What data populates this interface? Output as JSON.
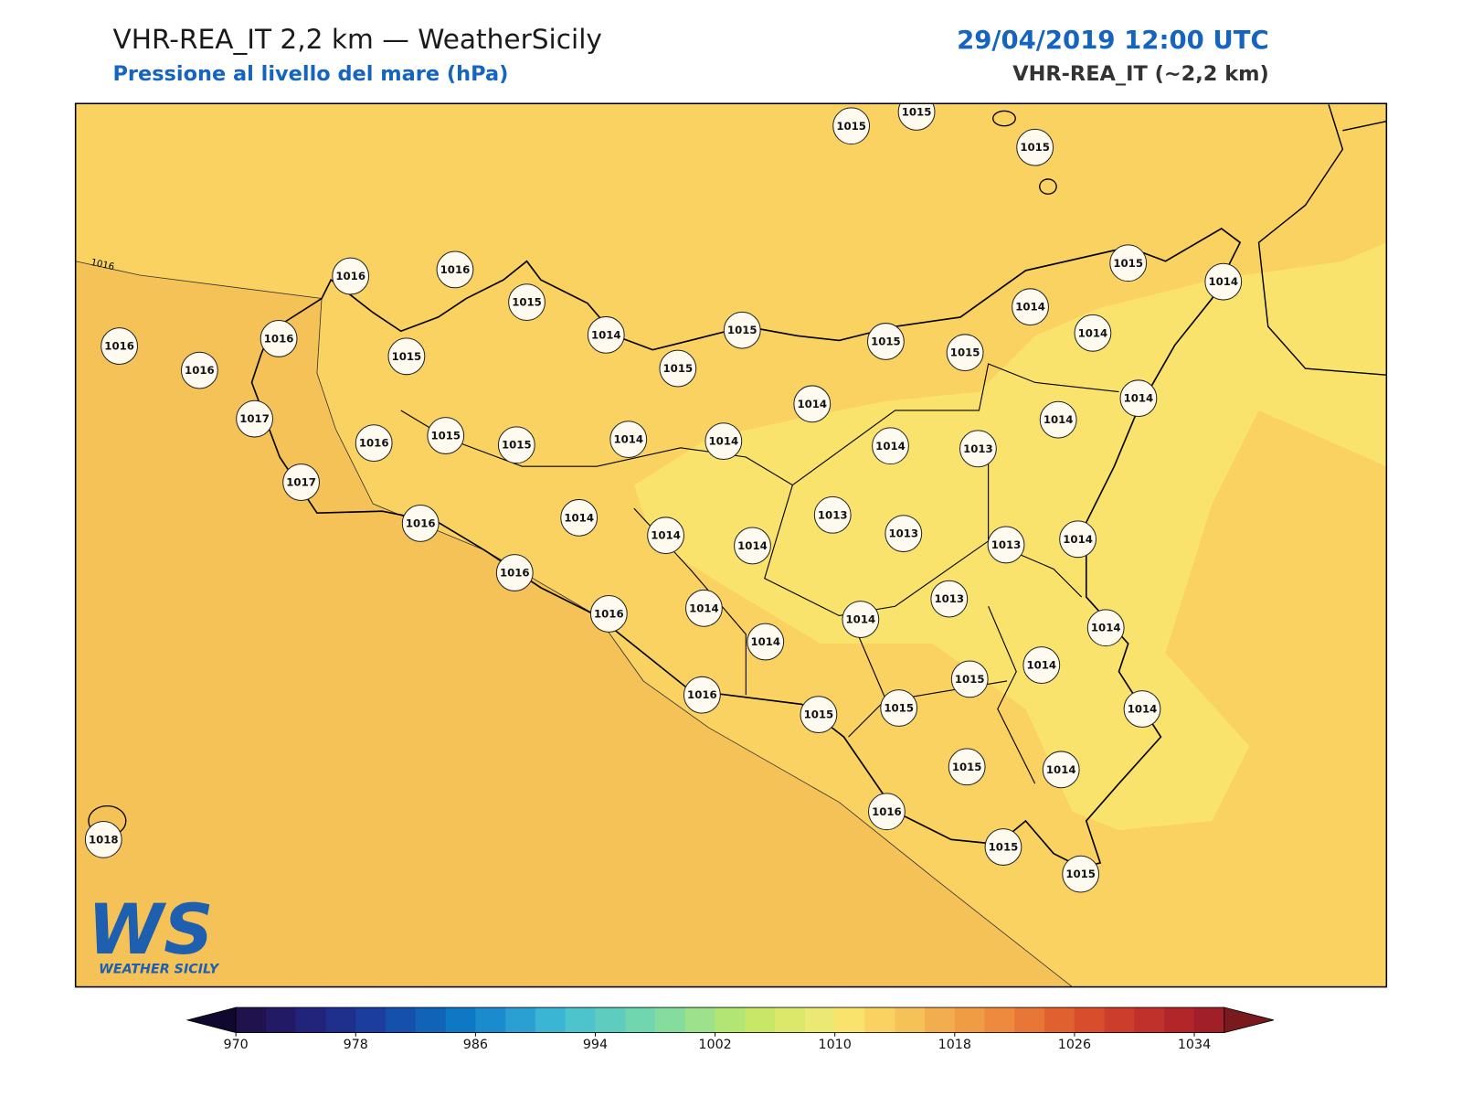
{
  "header": {
    "title": "VHR-REA_IT 2,2 km — WeatherSicily",
    "subtitle": "Pressione al livello del mare (hPa)",
    "datetime": "29/04/2019 12:00 UTC",
    "model": "VHR-REA_IT (~2,2 km)"
  },
  "map": {
    "isobar_label": "1016",
    "stations": [
      1015,
      1015,
      1015,
      1016,
      1016,
      1015,
      1014,
      1015,
      1015,
      1015,
      1015,
      1014,
      1015,
      1014,
      1014,
      1016,
      1016,
      1016,
      1015,
      1017,
      1016,
      1015,
      1015,
      1014,
      1014,
      1014,
      1014,
      1013,
      1014,
      1014,
      1017,
      1016,
      1014,
      1014,
      1014,
      1013,
      1013,
      1013,
      1014,
      1016,
      1016,
      1014,
      1014,
      1014,
      1013,
      1014,
      1015,
      1014,
      1016,
      1015,
      1015,
      1014,
      1015,
      1014,
      1016,
      1015,
      1015,
      1018
    ]
  },
  "logo": {
    "mark": "WS",
    "name": "WEATHER SICILY"
  },
  "colorbar": {
    "lim": [
      970,
      1036
    ],
    "ticks": [
      970,
      978,
      986,
      994,
      1002,
      1010,
      1018,
      1026,
      1034
    ],
    "colors": [
      "#20124d",
      "#231a66",
      "#22237a",
      "#1f2f8c",
      "#1a3d9e",
      "#1550ac",
      "#1163b8",
      "#0f78c4",
      "#1a8bcd",
      "#2aa0d2",
      "#3ab5d4",
      "#4dc3cc",
      "#5ecdc0",
      "#70d6b0",
      "#86dc9c",
      "#9de28a",
      "#b3e575",
      "#c8e766",
      "#dbe86a",
      "#ebe874",
      "#fae36d",
      "#f9d262",
      "#f5c257",
      "#f2ad4e",
      "#ef9c45",
      "#ed8a3d",
      "#e87636",
      "#e1602f",
      "#d84e2c",
      "#cc3d2b",
      "#c0312b",
      "#b2262a",
      "#a01f28"
    ],
    "extend_colors": [
      "#10082e",
      "#7a1a1e"
    ]
  }
}
